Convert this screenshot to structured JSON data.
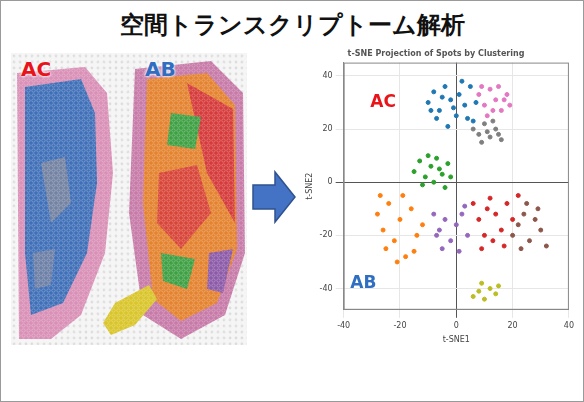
{
  "header": {
    "title": "空間トランスクリプトーム解析"
  },
  "tissue_image": {
    "labels": [
      {
        "text": "AC",
        "color": "#e8141a"
      },
      {
        "text": "AB",
        "color": "#2f6ec0"
      }
    ]
  },
  "chart_data": {
    "type": "scatter",
    "title": "t-SNE Projection of Spots by Clustering",
    "x_label": "t-SNE1",
    "y_label": "t-SNE2",
    "xlim": [
      -40,
      40
    ],
    "ylim": [
      -48,
      45
    ],
    "xticks": [
      -40,
      -20,
      0,
      20,
      40
    ],
    "yticks": [
      -40,
      -20,
      0,
      20,
      40
    ],
    "grid": true,
    "marker": "circle",
    "annotations": [
      {
        "text": "AC",
        "color": "#e8141a",
        "x": -26,
        "y": 30
      },
      {
        "text": "AB",
        "color": "#2f6ec0",
        "x": -33,
        "y": -38
      }
    ],
    "series": [
      {
        "color": "#1f77b4",
        "points": [
          [
            -10,
            30
          ],
          [
            -8,
            34
          ],
          [
            -6,
            27
          ],
          [
            -4,
            36
          ],
          [
            -2,
            31
          ],
          [
            0,
            25
          ],
          [
            1,
            33
          ],
          [
            3,
            29
          ],
          [
            5,
            36
          ],
          [
            6,
            23
          ],
          [
            -7,
            24
          ],
          [
            -3,
            21
          ],
          [
            2,
            38
          ],
          [
            7,
            30
          ],
          [
            -9,
            27
          ],
          [
            4,
            24
          ],
          [
            -1,
            28
          ],
          [
            -5,
            32
          ]
        ]
      },
      {
        "color": "#e377c2",
        "points": [
          [
            8,
            33
          ],
          [
            10,
            29
          ],
          [
            12,
            35
          ],
          [
            14,
            31
          ],
          [
            16,
            27
          ],
          [
            18,
            33
          ],
          [
            11,
            25
          ],
          [
            15,
            36
          ],
          [
            19,
            29
          ],
          [
            13,
            27
          ],
          [
            17,
            31
          ],
          [
            9,
            36
          ]
        ]
      },
      {
        "color": "#7f7f7f",
        "points": [
          [
            6,
            20
          ],
          [
            8,
            18
          ],
          [
            10,
            22
          ],
          [
            12,
            17
          ],
          [
            14,
            20
          ],
          [
            16,
            16
          ],
          [
            9,
            15
          ],
          [
            11,
            19
          ],
          [
            13,
            23
          ],
          [
            15,
            18
          ]
        ]
      },
      {
        "color": "#2ca02c",
        "points": [
          [
            -15,
            4
          ],
          [
            -13,
            8
          ],
          [
            -11,
            2
          ],
          [
            -9,
            6
          ],
          [
            -7,
            9
          ],
          [
            -5,
            3
          ],
          [
            -3,
            7
          ],
          [
            -12,
            -1
          ],
          [
            -8,
            0
          ],
          [
            -4,
            -2
          ],
          [
            -10,
            10
          ],
          [
            -6,
            5
          ],
          [
            -2,
            2
          ]
        ]
      },
      {
        "color": "#ff7f0e",
        "points": [
          [
            -28,
            -12
          ],
          [
            -26,
            -18
          ],
          [
            -24,
            -8
          ],
          [
            -22,
            -22
          ],
          [
            -20,
            -14
          ],
          [
            -18,
            -28
          ],
          [
            -16,
            -10
          ],
          [
            -14,
            -20
          ],
          [
            -25,
            -25
          ],
          [
            -19,
            -5
          ],
          [
            -12,
            -16
          ],
          [
            -21,
            -30
          ],
          [
            -27,
            -5
          ],
          [
            -15,
            -26
          ]
        ]
      },
      {
        "color": "#9467bd",
        "points": [
          [
            -8,
            -12
          ],
          [
            -6,
            -18
          ],
          [
            -4,
            -14
          ],
          [
            -2,
            -22
          ],
          [
            0,
            -16
          ],
          [
            2,
            -12
          ],
          [
            4,
            -20
          ],
          [
            -5,
            -25
          ],
          [
            1,
            -26
          ],
          [
            -7,
            -20
          ],
          [
            3,
            -9
          ]
        ]
      },
      {
        "color": "#d62728",
        "points": [
          [
            6,
            -8
          ],
          [
            8,
            -14
          ],
          [
            10,
            -20
          ],
          [
            12,
            -6
          ],
          [
            14,
            -12
          ],
          [
            16,
            -18
          ],
          [
            18,
            -8
          ],
          [
            20,
            -14
          ],
          [
            9,
            -25
          ],
          [
            13,
            -22
          ],
          [
            22,
            -5
          ],
          [
            17,
            -24
          ],
          [
            11,
            -10
          ]
        ]
      },
      {
        "color": "#8c564b",
        "points": [
          [
            20,
            -20
          ],
          [
            22,
            -16
          ],
          [
            24,
            -12
          ],
          [
            26,
            -22
          ],
          [
            28,
            -14
          ],
          [
            30,
            -18
          ],
          [
            32,
            -24
          ],
          [
            25,
            -8
          ],
          [
            29,
            -10
          ],
          [
            23,
            -25
          ]
        ]
      },
      {
        "color": "#bcbd22",
        "points": [
          [
            6,
            -43
          ],
          [
            8,
            -41
          ],
          [
            10,
            -44
          ],
          [
            12,
            -40
          ],
          [
            14,
            -42
          ],
          [
            9,
            -38
          ],
          [
            15,
            -39
          ]
        ]
      }
    ]
  }
}
